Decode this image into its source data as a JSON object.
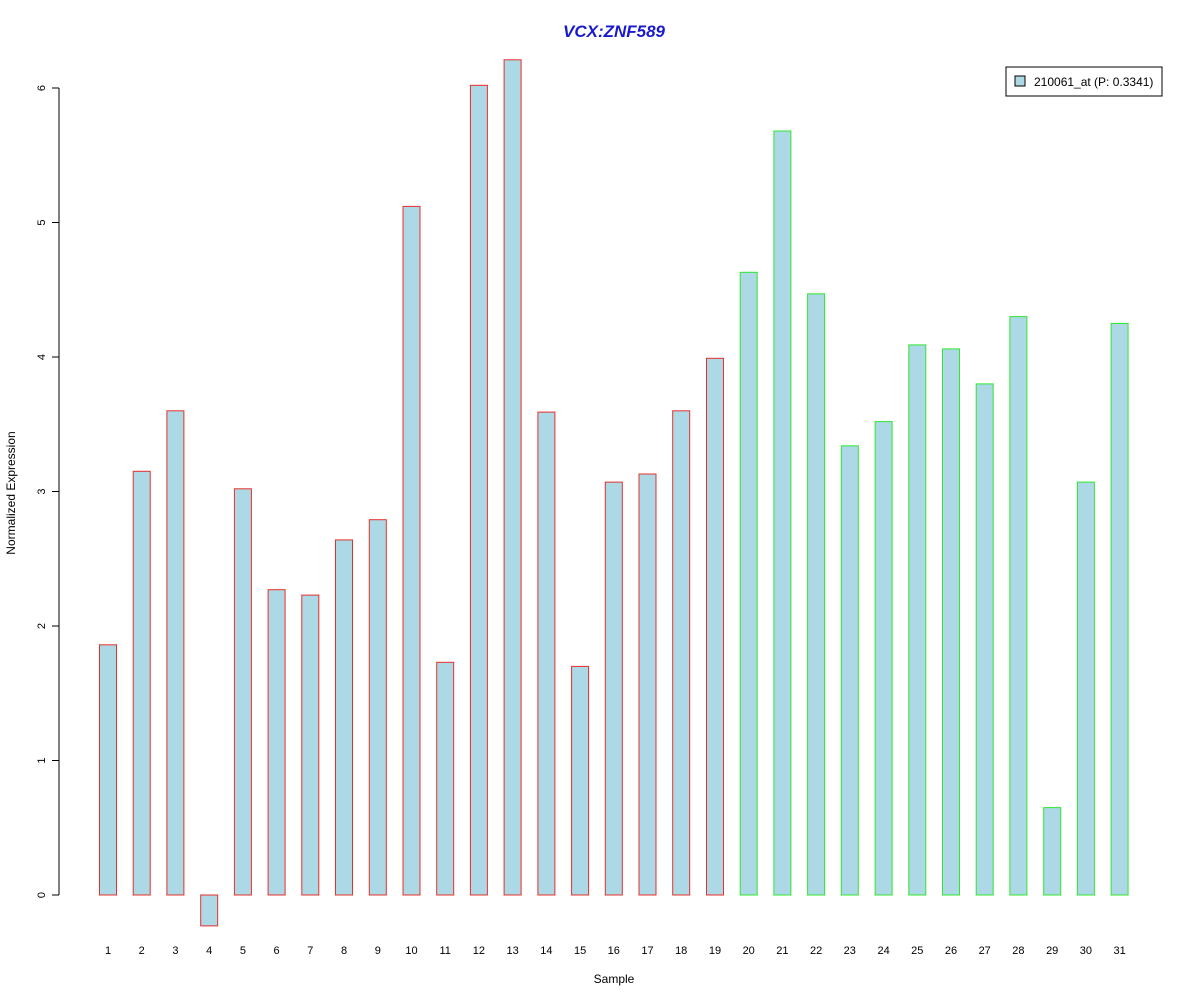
{
  "chart_data": {
    "type": "bar",
    "title": "VCX:ZNF589",
    "xlabel": "Sample",
    "ylabel": "Normalized Expression",
    "ylim": [
      -0.25,
      6.25
    ],
    "yticks": [
      0,
      1,
      2,
      3,
      4,
      5,
      6
    ],
    "categories": [
      "1",
      "2",
      "3",
      "4",
      "5",
      "6",
      "7",
      "8",
      "9",
      "10",
      "11",
      "12",
      "13",
      "14",
      "15",
      "16",
      "17",
      "18",
      "19",
      "20",
      "21",
      "22",
      "23",
      "24",
      "25",
      "26",
      "27",
      "28",
      "29",
      "30",
      "31"
    ],
    "series": [
      {
        "name": "210061_at (P: 0.3341)",
        "values": [
          1.86,
          3.15,
          3.6,
          -0.23,
          3.02,
          2.27,
          2.23,
          2.64,
          2.79,
          5.12,
          1.73,
          6.02,
          6.21,
          3.59,
          1.7,
          3.07,
          3.13,
          3.6,
          3.99,
          4.63,
          5.68,
          4.47,
          3.34,
          3.52,
          4.09,
          4.06,
          3.8,
          4.3,
          0.65,
          3.07,
          4.25
        ]
      }
    ],
    "group_outline": [
      "red",
      "red",
      "red",
      "red",
      "red",
      "red",
      "red",
      "red",
      "red",
      "red",
      "red",
      "red",
      "red",
      "red",
      "red",
      "red",
      "red",
      "red",
      "red",
      "green",
      "green",
      "green",
      "green",
      "green",
      "green",
      "green",
      "green",
      "green",
      "green",
      "green",
      "green"
    ],
    "colors": {
      "bar_fill": "#add8e6",
      "red": "#e8302a",
      "green": "#2ee82e",
      "title": "#1a1acd"
    },
    "legend": {
      "label": "210061_at (P: 0.3341)",
      "position": "top-right"
    },
    "grid": false
  }
}
